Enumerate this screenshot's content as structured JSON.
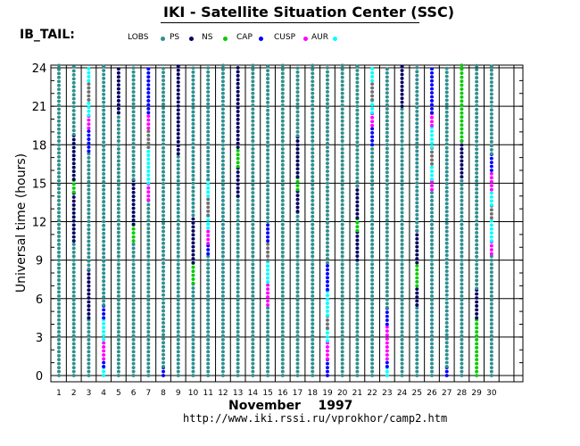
{
  "header": {
    "title": "IKI - Satellite Situation Center (SSC)",
    "satellite": "IB_TAIL:"
  },
  "legend": [
    {
      "label": "LOBS",
      "color": "#000000"
    },
    {
      "label": "PS",
      "color": "#2f8f8f"
    },
    {
      "label": "NS",
      "color": "#000060"
    },
    {
      "label": "CAP",
      "color": "#00cc00"
    },
    {
      "label": "CUSP",
      "color": "#0000ff"
    },
    {
      "label": "AUR",
      "color": "#ff00ff"
    },
    {
      "label": "",
      "color": "#00ffff"
    }
  ],
  "footer": {
    "month": "November    1997",
    "url": "http://www.iki.rssi.ru/vprokhor/camp2.htm"
  },
  "colors": {
    "PS": "#2f8f8f",
    "NS": "#000060",
    "CAP": "#00cc00",
    "CUSP": "#0000ff",
    "AUR": "#ff00ff",
    "BND": "#00ffff",
    "GAP": "#707070",
    "grid": "#000000"
  },
  "chart_data": {
    "type": "scatter",
    "title": "IKI - Satellite Situation Center (SSC)",
    "xlabel": "November    1997",
    "ylabel": "Universal time (hours)",
    "xlim": [
      1,
      30
    ],
    "ylim": [
      0,
      24
    ],
    "x_ticks": [
      "1",
      "2",
      "3",
      "4",
      "5",
      "6",
      "7",
      "8",
      "9",
      "10",
      "11",
      "12",
      "13",
      "14",
      "15",
      "16",
      "17",
      "18",
      "19",
      "20",
      "21",
      "22",
      "23",
      "24",
      "25",
      "26",
      "27",
      "28",
      "29",
      "30"
    ],
    "y_ticks": [
      "0",
      "3",
      "6",
      "9",
      "12",
      "15",
      "18",
      "21",
      "24"
    ],
    "grid": true,
    "days": [
      {
        "day": 1,
        "segments": [
          [
            0,
            24.3,
            "PS"
          ]
        ]
      },
      {
        "day": 2,
        "segments": [
          [
            0,
            10.5,
            "PS"
          ],
          [
            10.5,
            14.3,
            "NS"
          ],
          [
            14.3,
            15.3,
            "CAP"
          ],
          [
            15.3,
            18.8,
            "NS"
          ],
          [
            18.8,
            24.3,
            "PS"
          ]
        ]
      },
      {
        "day": 3,
        "segments": [
          [
            0,
            4.5,
            "PS"
          ],
          [
            4.5,
            8.3,
            "NS"
          ],
          [
            8.3,
            17.5,
            "PS"
          ],
          [
            17.5,
            19.3,
            "CUSP"
          ],
          [
            19.3,
            20.3,
            "AUR"
          ],
          [
            20.3,
            21.5,
            "BND"
          ],
          [
            21.5,
            23.0,
            "GAP"
          ],
          [
            23.0,
            24.3,
            "BND"
          ]
        ]
      },
      {
        "day": 4,
        "segments": [
          [
            0,
            0.7,
            "BND"
          ],
          [
            0.7,
            1.3,
            "CUSP"
          ],
          [
            1.3,
            2.8,
            "AUR"
          ],
          [
            2.8,
            4.5,
            "BND"
          ],
          [
            4.5,
            5.5,
            "CUSP"
          ],
          [
            5.5,
            24.3,
            "PS"
          ]
        ]
      },
      {
        "day": 5,
        "segments": [
          [
            0,
            20.5,
            "PS"
          ],
          [
            20.5,
            24.3,
            "NS"
          ]
        ]
      },
      {
        "day": 6,
        "segments": [
          [
            0,
            10.5,
            "PS"
          ],
          [
            10.5,
            11.8,
            "CAP"
          ],
          [
            11.8,
            15.3,
            "NS"
          ],
          [
            15.3,
            24.3,
            "PS"
          ]
        ]
      },
      {
        "day": 7,
        "segments": [
          [
            0,
            13.7,
            "PS"
          ],
          [
            13.7,
            15.0,
            "AUR"
          ],
          [
            15.0,
            17.8,
            "BND"
          ],
          [
            17.8,
            19.3,
            "GAP"
          ],
          [
            19.3,
            20.5,
            "AUR"
          ],
          [
            20.5,
            24.3,
            "CUSP"
          ]
        ]
      },
      {
        "day": 8,
        "segments": [
          [
            0,
            0.7,
            "CUSP"
          ],
          [
            0.7,
            24.3,
            "PS"
          ]
        ]
      },
      {
        "day": 9,
        "segments": [
          [
            0,
            17.3,
            "PS"
          ],
          [
            17.3,
            24.3,
            "NS"
          ]
        ]
      },
      {
        "day": 10,
        "segments": [
          [
            0,
            7.2,
            "PS"
          ],
          [
            7.2,
            8.8,
            "CAP"
          ],
          [
            8.8,
            12.5,
            "NS"
          ],
          [
            12.5,
            24.3,
            "PS"
          ]
        ]
      },
      {
        "day": 11,
        "segments": [
          [
            0,
            9.5,
            "PS"
          ],
          [
            9.5,
            10.3,
            "CUSP"
          ],
          [
            10.3,
            11.5,
            "AUR"
          ],
          [
            11.5,
            12.5,
            "BND"
          ],
          [
            12.5,
            14.0,
            "GAP"
          ],
          [
            14.0,
            15.3,
            "BND"
          ],
          [
            15.3,
            24.3,
            "PS"
          ]
        ]
      },
      {
        "day": 12,
        "segments": [
          [
            0,
            24.3,
            "PS"
          ]
        ]
      },
      {
        "day": 13,
        "segments": [
          [
            0,
            14.0,
            "PS"
          ],
          [
            14.0,
            16.3,
            "NS"
          ],
          [
            16.3,
            17.8,
            "CAP"
          ],
          [
            17.8,
            24.3,
            "NS"
          ]
        ]
      },
      {
        "day": 14,
        "segments": [
          [
            0,
            24.3,
            "PS"
          ]
        ]
      },
      {
        "day": 15,
        "segments": [
          [
            0,
            5.5,
            "PS"
          ],
          [
            5.5,
            7.3,
            "AUR"
          ],
          [
            7.3,
            9.0,
            "BND"
          ],
          [
            9.0,
            10.5,
            "GAP"
          ],
          [
            10.5,
            12.0,
            "CUSP"
          ],
          [
            12.0,
            24.3,
            "PS"
          ]
        ]
      },
      {
        "day": 16,
        "segments": [
          [
            0,
            24.3,
            "PS"
          ]
        ]
      },
      {
        "day": 17,
        "segments": [
          [
            0,
            12.8,
            "PS"
          ],
          [
            12.8,
            14.5,
            "NS"
          ],
          [
            14.5,
            15.5,
            "CAP"
          ],
          [
            15.5,
            18.7,
            "NS"
          ],
          [
            18.7,
            24.3,
            "PS"
          ]
        ]
      },
      {
        "day": 18,
        "segments": [
          [
            0,
            24.3,
            "PS"
          ]
        ]
      },
      {
        "day": 19,
        "segments": [
          [
            0,
            1.3,
            "CUSP"
          ],
          [
            1.3,
            2.7,
            "AUR"
          ],
          [
            2.7,
            3.7,
            "BND"
          ],
          [
            3.7,
            4.7,
            "GAP"
          ],
          [
            4.7,
            6.7,
            "BND"
          ],
          [
            6.7,
            8.8,
            "CUSP"
          ],
          [
            8.8,
            24.3,
            "PS"
          ]
        ]
      },
      {
        "day": 20,
        "segments": [
          [
            0,
            24.3,
            "PS"
          ]
        ]
      },
      {
        "day": 21,
        "segments": [
          [
            0,
            9.0,
            "PS"
          ],
          [
            9.0,
            11.3,
            "NS"
          ],
          [
            11.3,
            12.3,
            "CAP"
          ],
          [
            12.3,
            14.8,
            "NS"
          ],
          [
            14.8,
            24.3,
            "PS"
          ]
        ]
      },
      {
        "day": 22,
        "segments": [
          [
            0,
            18.0,
            "PS"
          ],
          [
            18.0,
            19.5,
            "CUSP"
          ],
          [
            19.5,
            20.5,
            "AUR"
          ],
          [
            20.5,
            21.5,
            "BND"
          ],
          [
            21.5,
            23.0,
            "GAP"
          ],
          [
            23.0,
            24.3,
            "BND"
          ]
        ]
      },
      {
        "day": 23,
        "segments": [
          [
            0,
            0.7,
            "BND"
          ],
          [
            0.7,
            1.3,
            "CUSP"
          ],
          [
            1.3,
            4.0,
            "AUR"
          ],
          [
            4.0,
            5.3,
            "CUSP"
          ],
          [
            5.3,
            24.3,
            "PS"
          ]
        ]
      },
      {
        "day": 24,
        "segments": [
          [
            0,
            21.0,
            "PS"
          ],
          [
            21.0,
            24.3,
            "NS"
          ]
        ]
      },
      {
        "day": 25,
        "segments": [
          [
            0,
            5.5,
            "PS"
          ],
          [
            5.5,
            7.0,
            "NS"
          ],
          [
            7.0,
            8.8,
            "CAP"
          ],
          [
            8.8,
            11.3,
            "NS"
          ],
          [
            11.3,
            24.3,
            "PS"
          ]
        ]
      },
      {
        "day": 26,
        "segments": [
          [
            0,
            14.5,
            "PS"
          ],
          [
            14.5,
            15.3,
            "AUR"
          ],
          [
            15.3,
            16.5,
            "BND"
          ],
          [
            16.5,
            17.8,
            "GAP"
          ],
          [
            17.8,
            19.5,
            "BND"
          ],
          [
            19.5,
            20.5,
            "AUR"
          ],
          [
            20.5,
            24.3,
            "CUSP"
          ]
        ]
      },
      {
        "day": 27,
        "segments": [
          [
            0,
            0.7,
            "CUSP"
          ],
          [
            0.7,
            24.3,
            "PS"
          ]
        ]
      },
      {
        "day": 28,
        "segments": [
          [
            0,
            15.5,
            "PS"
          ],
          [
            15.5,
            18.3,
            "NS"
          ],
          [
            18.3,
            24.3,
            "CAP"
          ]
        ]
      },
      {
        "day": 29,
        "segments": [
          [
            0,
            4.5,
            "CAP"
          ],
          [
            4.5,
            6.8,
            "NS"
          ],
          [
            6.8,
            24.3,
            "PS"
          ]
        ]
      },
      {
        "day": 30,
        "segments": [
          [
            0,
            9.5,
            "PS"
          ],
          [
            9.5,
            10.5,
            "AUR"
          ],
          [
            10.5,
            12.3,
            "BND"
          ],
          [
            12.3,
            13.3,
            "GAP"
          ],
          [
            13.3,
            14.5,
            "BND"
          ],
          [
            14.5,
            16.0,
            "AUR"
          ],
          [
            16.0,
            17.3,
            "CUSP"
          ],
          [
            17.3,
            24.3,
            "PS"
          ]
        ]
      }
    ]
  }
}
